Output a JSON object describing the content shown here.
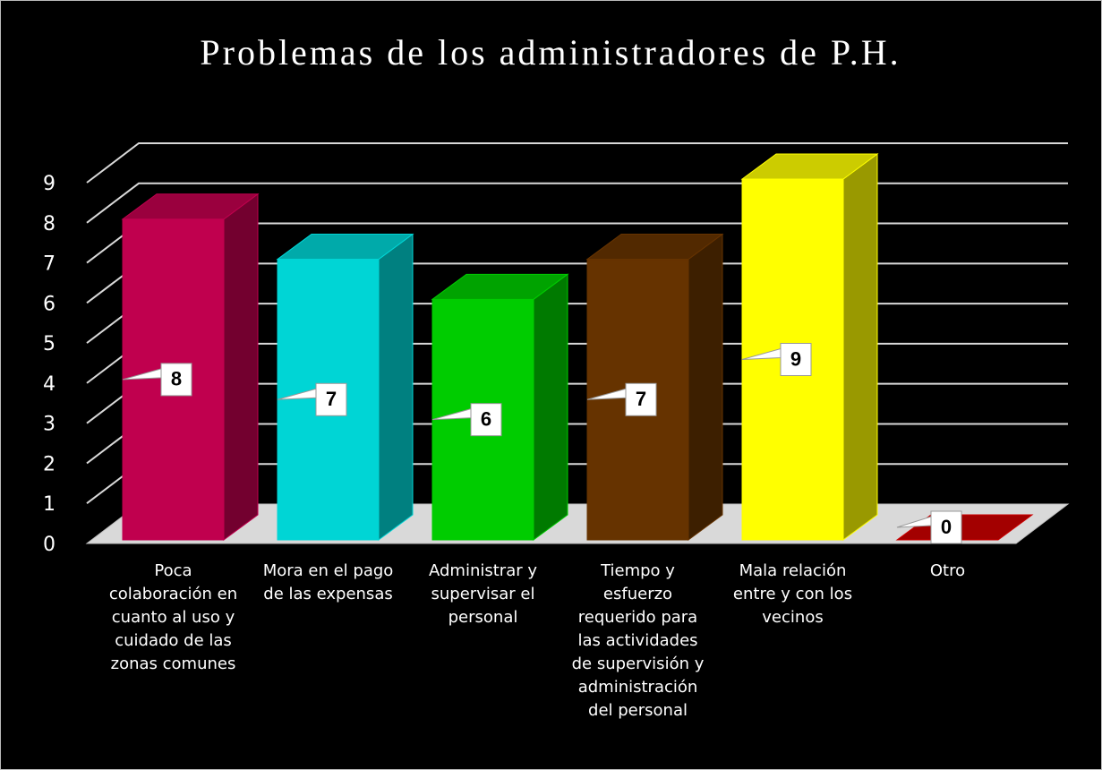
{
  "chart_data": {
    "type": "bar3d",
    "title": "Problemas de los administradores de P.H.",
    "categories": [
      "Poca colaboración en cuanto al uso y cuidado de las zonas comunes",
      "Mora en el pago de las expensas",
      "Administrar y supervisar el personal",
      "Tiempo y esfuerzo requerido para las actividades de supervisión y administración del personal",
      "Mala relación entre y con los vecinos",
      "Otro"
    ],
    "values": [
      8,
      7,
      6,
      7,
      9,
      0
    ],
    "colors": [
      "#c0004e",
      "#00d5d5",
      "#00cc00",
      "#663300",
      "#ffff00",
      "#cc0000"
    ],
    "ylim": [
      0,
      9
    ],
    "yticks": [
      0,
      1,
      2,
      3,
      4,
      5,
      6,
      7,
      8,
      9
    ],
    "grid": true
  }
}
